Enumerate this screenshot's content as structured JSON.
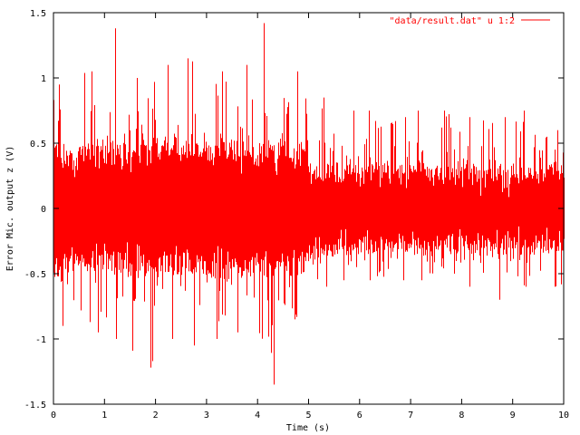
{
  "chart_data": {
    "type": "line",
    "title": "",
    "xlabel": "Time (s)",
    "ylabel": "Error Mic. output z (V)",
    "xlim": [
      0,
      10
    ],
    "ylim": [
      -1.5,
      1.5
    ],
    "xticks": [
      "0",
      "1",
      "2",
      "3",
      "4",
      "5",
      "6",
      "7",
      "8",
      "9",
      "10"
    ],
    "yticks": [
      "-1.5",
      "-1",
      "-0.5",
      "0",
      "0.5",
      "1",
      "1.5"
    ],
    "grid": false,
    "legend_position": "top-right",
    "series": [
      {
        "name": "\"data/result.dat\" u 1:2",
        "color": "#ff0000",
        "description_of_values": "dense noise signal; envelope per 0.5 s bin",
        "bin_start_s": [
          0,
          0.5,
          1,
          1.5,
          2,
          2.5,
          3,
          3.5,
          4,
          4.5,
          5,
          5.5,
          6,
          6.5,
          7,
          7.5,
          8,
          8.5,
          9,
          9.5
        ],
        "bin_max": [
          0.95,
          1.05,
          1.38,
          1.0,
          1.1,
          1.15,
          1.05,
          1.1,
          1.42,
          1.05,
          0.85,
          0.75,
          0.75,
          0.7,
          0.75,
          0.75,
          0.7,
          0.7,
          0.75,
          0.6
        ],
        "bin_min": [
          -0.9,
          -0.95,
          -1.0,
          -1.22,
          -1.0,
          -1.05,
          -1.0,
          -0.95,
          -1.35,
          -0.85,
          -0.6,
          -0.55,
          -0.55,
          -0.55,
          -0.55,
          -0.5,
          -0.6,
          -0.7,
          -0.6,
          -0.6
        ],
        "bin_typical_band": [
          0.45,
          0.45,
          0.48,
          0.48,
          0.48,
          0.48,
          0.47,
          0.47,
          0.48,
          0.45,
          0.32,
          0.3,
          0.3,
          0.3,
          0.3,
          0.3,
          0.3,
          0.3,
          0.3,
          0.3
        ]
      }
    ]
  }
}
